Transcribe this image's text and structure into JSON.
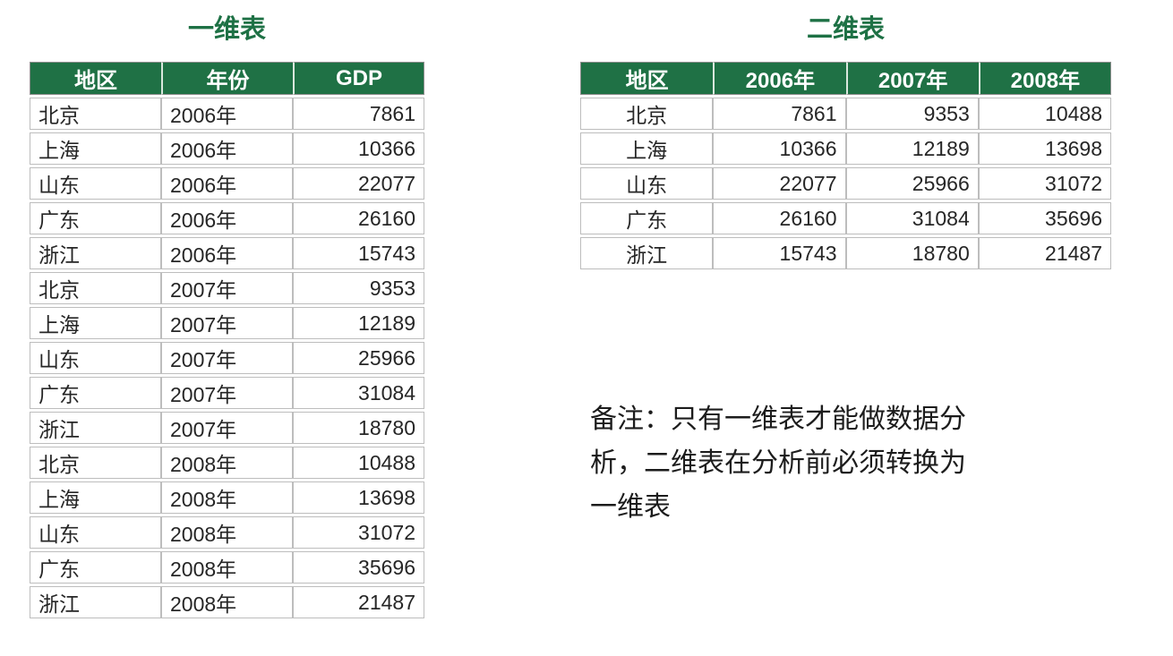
{
  "colors": {
    "header_green": "#1F7145",
    "title_green": "#1E7145",
    "cell_border_gray": "#BDBDBD",
    "body_text": "#262626"
  },
  "left_table": {
    "title": "一维表",
    "columns": [
      "地区",
      "年份",
      "GDP"
    ],
    "rows": [
      [
        "北京",
        "2006年",
        7861
      ],
      [
        "上海",
        "2006年",
        10366
      ],
      [
        "山东",
        "2006年",
        22077
      ],
      [
        "广东",
        "2006年",
        26160
      ],
      [
        "浙江",
        "2006年",
        15743
      ],
      [
        "北京",
        "2007年",
        9353
      ],
      [
        "上海",
        "2007年",
        12189
      ],
      [
        "山东",
        "2007年",
        25966
      ],
      [
        "广东",
        "2007年",
        31084
      ],
      [
        "浙江",
        "2007年",
        18780
      ],
      [
        "北京",
        "2008年",
        10488
      ],
      [
        "上海",
        "2008年",
        13698
      ],
      [
        "山东",
        "2008年",
        31072
      ],
      [
        "广东",
        "2008年",
        35696
      ],
      [
        "浙江",
        "2008年",
        21487
      ]
    ]
  },
  "right_table": {
    "title": "二维表",
    "columns": [
      "地区",
      "2006年",
      "2007年",
      "2008年"
    ],
    "rows": [
      [
        "北京",
        7861,
        9353,
        10488
      ],
      [
        "上海",
        10366,
        12189,
        13698
      ],
      [
        "山东",
        22077,
        25966,
        31072
      ],
      [
        "广东",
        26160,
        31084,
        35696
      ],
      [
        "浙江",
        15743,
        18780,
        21487
      ]
    ]
  },
  "note": {
    "lines": [
      "备注：只有一维表才能做数据分",
      "析，二维表在分析前必须转换为",
      "一维表"
    ]
  }
}
